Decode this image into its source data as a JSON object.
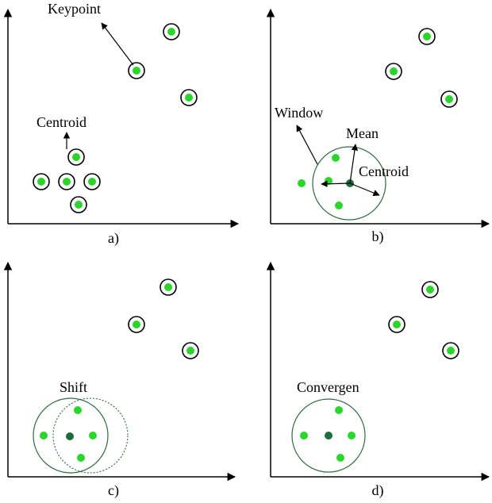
{
  "panels": {
    "a": {
      "caption": "a)",
      "labels": {
        "keypoint": "Keypoint",
        "centroid": "Centroid"
      }
    },
    "b": {
      "caption": "b)",
      "labels": {
        "window": "Window",
        "mean": "Mean",
        "centroid": "Centroid"
      }
    },
    "c": {
      "caption": "c)",
      "labels": {
        "shift": "Shift"
      }
    },
    "d": {
      "caption": "d)",
      "labels": {
        "convergence": "Convergen"
      }
    }
  },
  "colors": {
    "point_fill": "#2bd62b",
    "centroid_fill": "#1a6e3c",
    "window_stroke": "#2f6b3f",
    "ring_stroke": "#000000",
    "axis": "#000000"
  }
}
